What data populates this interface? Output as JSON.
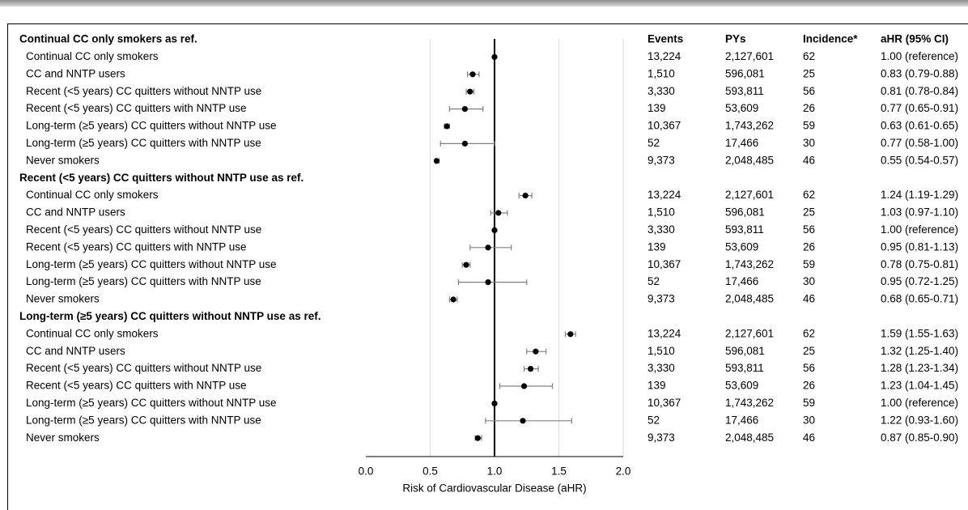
{
  "chart_data": {
    "type": "forest",
    "xlabel": "Risk of Cardiovascular Disease (aHR)",
    "xlim": [
      0,
      2
    ],
    "x_ticks": [
      "0.0",
      "0.5",
      "1.0",
      "1.5",
      "2.0"
    ],
    "reference_line": 1.0,
    "grid": "vertical",
    "columns": [
      "Events",
      "PYs",
      "Incidence*",
      "aHR (95% CI)"
    ],
    "groups": [
      {
        "header": "Continual CC only smokers as ref.",
        "rows": [
          {
            "label": "Continual CC only smokers",
            "hr": 1.0,
            "lo": 1.0,
            "hi": 1.0,
            "events": "13,224",
            "pys": "2,127,601",
            "incidence": "62",
            "ci_text": "1.00 (reference)"
          },
          {
            "label": "CC and NNTP users",
            "hr": 0.83,
            "lo": 0.79,
            "hi": 0.88,
            "events": "1,510",
            "pys": "596,081",
            "incidence": "25",
            "ci_text": "0.83 (0.79-0.88)"
          },
          {
            "label": "Recent (<5 years) CC quitters without NNTP use",
            "hr": 0.81,
            "lo": 0.78,
            "hi": 0.84,
            "events": "3,330",
            "pys": "593,811",
            "incidence": "56",
            "ci_text": "0.81 (0.78-0.84)"
          },
          {
            "label": "Recent (<5 years) CC quitters with NNTP use",
            "hr": 0.77,
            "lo": 0.65,
            "hi": 0.91,
            "events": "139",
            "pys": "53,609",
            "incidence": "26",
            "ci_text": "0.77 (0.65-0.91)"
          },
          {
            "label": "Long-term (≥5 years) CC quitters without NNTP use",
            "hr": 0.63,
            "lo": 0.61,
            "hi": 0.65,
            "events": "10,367",
            "pys": "1,743,262",
            "incidence": "59",
            "ci_text": "0.63 (0.61-0.65)"
          },
          {
            "label": "Long-term (≥5 years) CC quitters with NNTP use",
            "hr": 0.77,
            "lo": 0.58,
            "hi": 1.0,
            "events": "52",
            "pys": "17,466",
            "incidence": "30",
            "ci_text": "0.77 (0.58-1.00)"
          },
          {
            "label": "Never smokers",
            "hr": 0.55,
            "lo": 0.54,
            "hi": 0.57,
            "events": "9,373",
            "pys": "2,048,485",
            "incidence": "46",
            "ci_text": "0.55 (0.54-0.57)"
          }
        ]
      },
      {
        "header": "Recent (<5 years) CC quitters without NNTP use as ref.",
        "rows": [
          {
            "label": "Continual CC only smokers",
            "hr": 1.24,
            "lo": 1.19,
            "hi": 1.29,
            "events": "13,224",
            "pys": "2,127,601",
            "incidence": "62",
            "ci_text": "1.24 (1.19-1.29)"
          },
          {
            "label": "CC and NNTP users",
            "hr": 1.03,
            "lo": 0.97,
            "hi": 1.1,
            "events": "1,510",
            "pys": "596,081",
            "incidence": "25",
            "ci_text": "1.03 (0.97-1.10)"
          },
          {
            "label": "Recent (<5 years) CC quitters without NNTP use",
            "hr": 1.0,
            "lo": 1.0,
            "hi": 1.0,
            "events": "3,330",
            "pys": "593,811",
            "incidence": "56",
            "ci_text": "1.00 (reference)"
          },
          {
            "label": "Recent (<5 years) CC quitters with NNTP use",
            "hr": 0.95,
            "lo": 0.81,
            "hi": 1.13,
            "events": "139",
            "pys": "53,609",
            "incidence": "26",
            "ci_text": "0.95 (0.81-1.13)"
          },
          {
            "label": "Long-term (≥5 years) CC quitters without NNTP use",
            "hr": 0.78,
            "lo": 0.75,
            "hi": 0.81,
            "events": "10,367",
            "pys": "1,743,262",
            "incidence": "59",
            "ci_text": "0.78 (0.75-0.81)"
          },
          {
            "label": "Long-term (≥5 years) CC quitters with NNTP use",
            "hr": 0.95,
            "lo": 0.72,
            "hi": 1.25,
            "events": "52",
            "pys": "17,466",
            "incidence": "30",
            "ci_text": "0.95 (0.72-1.25)"
          },
          {
            "label": "Never smokers",
            "hr": 0.68,
            "lo": 0.65,
            "hi": 0.71,
            "events": "9,373",
            "pys": "2,048,485",
            "incidence": "46",
            "ci_text": "0.68 (0.65-0.71)"
          }
        ]
      },
      {
        "header": "Long-term (≥5 years) CC quitters without NNTP use as ref.",
        "rows": [
          {
            "label": "Continual CC only smokers",
            "hr": 1.59,
            "lo": 1.55,
            "hi": 1.63,
            "events": "13,224",
            "pys": "2,127,601",
            "incidence": "62",
            "ci_text": "1.59 (1.55-1.63)"
          },
          {
            "label": "CC and NNTP users",
            "hr": 1.32,
            "lo": 1.25,
            "hi": 1.4,
            "events": "1,510",
            "pys": "596,081",
            "incidence": "25",
            "ci_text": "1.32 (1.25-1.40)"
          },
          {
            "label": "Recent (<5 years) CC quitters without NNTP use",
            "hr": 1.28,
            "lo": 1.23,
            "hi": 1.34,
            "events": "3,330",
            "pys": "593,811",
            "incidence": "56",
            "ci_text": "1.28 (1.23-1.34)"
          },
          {
            "label": "Recent (<5 years) CC quitters with NNTP use",
            "hr": 1.23,
            "lo": 1.04,
            "hi": 1.45,
            "events": "139",
            "pys": "53,609",
            "incidence": "26",
            "ci_text": "1.23 (1.04-1.45)"
          },
          {
            "label": "Long-term (≥5 years) CC quitters without NNTP use",
            "hr": 1.0,
            "lo": 1.0,
            "hi": 1.0,
            "events": "10,367",
            "pys": "1,743,262",
            "incidence": "59",
            "ci_text": "1.00 (reference)"
          },
          {
            "label": "Long-term (≥5 years) CC quitters with NNTP use",
            "hr": 1.22,
            "lo": 0.93,
            "hi": 1.6,
            "events": "52",
            "pys": "17,466",
            "incidence": "30",
            "ci_text": "1.22 (0.93-1.60)"
          },
          {
            "label": "Never smokers",
            "hr": 0.87,
            "lo": 0.85,
            "hi": 0.9,
            "events": "9,373",
            "pys": "2,048,485",
            "incidence": "46",
            "ci_text": "0.87 (0.85-0.90)"
          }
        ]
      }
    ]
  },
  "colors": {
    "point": "#000000",
    "ci_line": "#808080",
    "grid": "#d9d9d9",
    "reference_line": "#000000"
  }
}
